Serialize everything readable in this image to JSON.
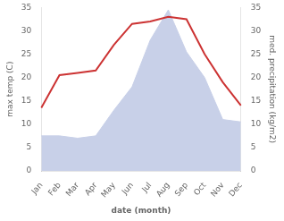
{
  "chart_data": {
    "type": "line",
    "categories": [
      "Jan",
      "Feb",
      "Mar",
      "Apr",
      "May",
      "Jun",
      "Jul",
      "Aug",
      "Sep",
      "Oct",
      "Nov",
      "Dec"
    ],
    "xlabel": "date (month)",
    "ylabel": "max temp (C)",
    "y2label": "med. precipitation (kg/m2)",
    "series": [
      {
        "type": "line",
        "color": "#cc3333",
        "values": [
          13.5,
          20.5,
          21.0,
          21.5,
          27.0,
          31.5,
          32.0,
          33.0,
          32.5,
          25.0,
          19.0,
          14.0
        ]
      },
      {
        "type": "area",
        "color": "#c8d0e8",
        "axis": "y2",
        "values": [
          7.5,
          7.5,
          7.0,
          7.5,
          13.0,
          18.0,
          28.0,
          34.5,
          25.5,
          20.0,
          11.0,
          10.5
        ]
      }
    ],
    "ylim": [
      0,
      35
    ],
    "yticks": [
      0,
      5,
      10,
      15,
      20,
      25,
      30,
      35
    ],
    "y2lim": [
      0,
      35
    ],
    "y2ticks": [
      0,
      5,
      10,
      15,
      20,
      25,
      30,
      35
    ],
    "grid": false
  }
}
